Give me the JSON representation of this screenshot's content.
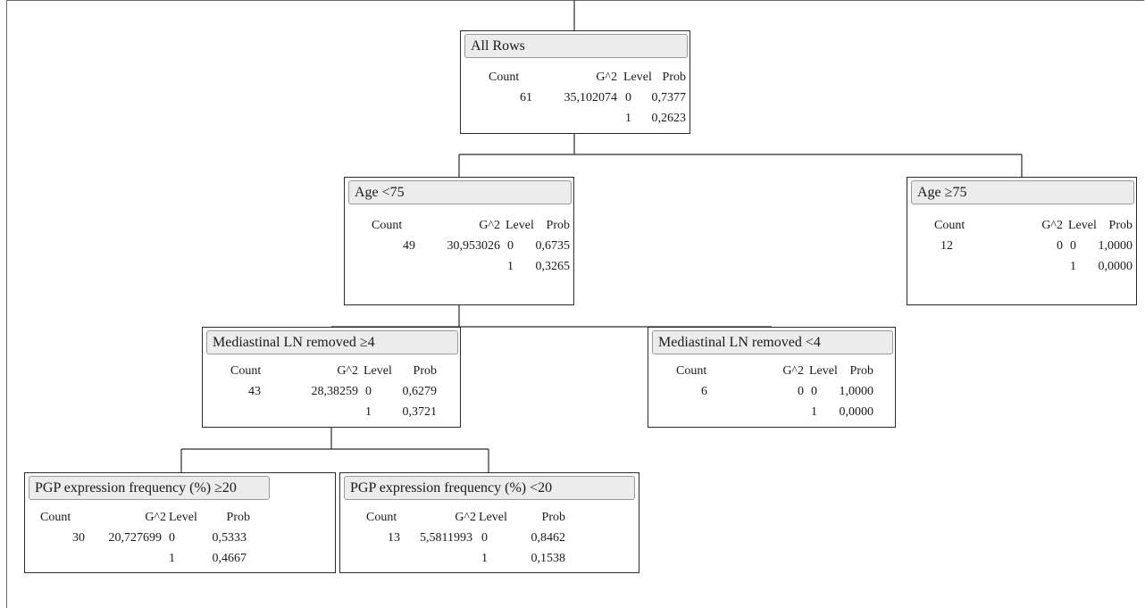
{
  "headers": {
    "count": "Count",
    "g2": "G^2",
    "level": "Level",
    "prob": "Prob"
  },
  "nodes": [
    {
      "id": "root",
      "title": "All Rows",
      "count": "61",
      "g2": "35,102074",
      "levels": [
        "0",
        "1"
      ],
      "probs": [
        "0,7377",
        "0,2623"
      ]
    },
    {
      "id": "age-lt-75",
      "title": "Age <75",
      "count": "49",
      "g2": "30,953026",
      "levels": [
        "0",
        "1"
      ],
      "probs": [
        "0,6735",
        "0,3265"
      ]
    },
    {
      "id": "age-ge-75",
      "title": "Age ≥75",
      "count": "12",
      "g2": "0",
      "levels": [
        "0",
        "1"
      ],
      "probs": [
        "1,0000",
        "0,0000"
      ]
    },
    {
      "id": "ln-ge-4",
      "title": "Mediastinal LN removed ≥4",
      "count": "43",
      "g2": "28,38259",
      "levels": [
        "0",
        "1"
      ],
      "probs": [
        "0,6279",
        "0,3721"
      ]
    },
    {
      "id": "ln-lt-4",
      "title": "Mediastinal LN removed <4",
      "count": "6",
      "g2": "0",
      "levels": [
        "0",
        "1"
      ],
      "probs": [
        "1,0000",
        "0,0000"
      ]
    },
    {
      "id": "pgp-ge-20",
      "title": "PGP expression frequency (%) ≥20",
      "count": "30",
      "g2": "20,727699",
      "levels": [
        "0",
        "1"
      ],
      "probs": [
        "0,5333",
        "0,4667"
      ]
    },
    {
      "id": "pgp-lt-20",
      "title": "PGP expression frequency (%) <20",
      "count": "13",
      "g2": "5,5811993",
      "levels": [
        "0",
        "1"
      ],
      "probs": [
        "0,8462",
        "0,1538"
      ]
    }
  ]
}
